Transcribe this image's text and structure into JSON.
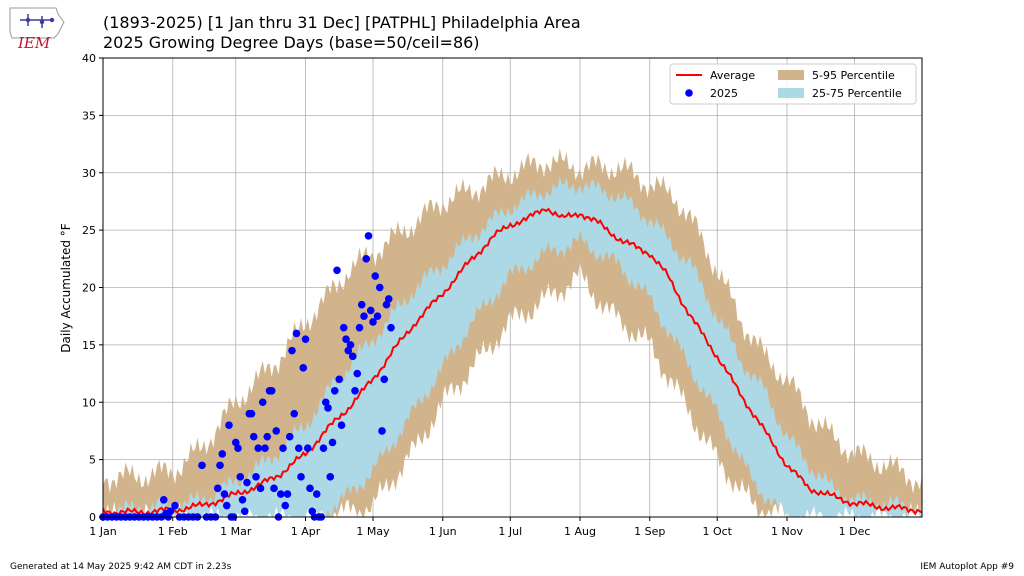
{
  "header": {
    "logo_text": "IEM",
    "title_line1": "(1893-2025) [1 Jan thru 31 Dec] [PATPHL] Philadelphia Area",
    "title_line2": "2025 Growing Degree Days (base=50/ceil=86)"
  },
  "footer": {
    "generated": "Generated at 14 May 2025 9:42 AM CDT in 2.23s",
    "app": "IEM Autoplot App #9"
  },
  "colors": {
    "average": "#ff0000",
    "obs": "#0000ff",
    "band_5_95": "#d2b48c",
    "band_25_75": "#add8e6",
    "grid": "#b0b0b0"
  },
  "chart_data": {
    "type": "line",
    "title": "2025 Growing Degree Days (base=50/ceil=86)",
    "xlabel": "",
    "ylabel": "Daily Accumulated °F",
    "xlim": [
      1,
      365
    ],
    "ylim": [
      0,
      40
    ],
    "grid": true,
    "legend_position": "top-right",
    "x_ticks": [
      {
        "label": "1 Jan",
        "doy": 1
      },
      {
        "label": "1 Feb",
        "doy": 32
      },
      {
        "label": "1 Mar",
        "doy": 60
      },
      {
        "label": "1 Apr",
        "doy": 91
      },
      {
        "label": "1 May",
        "doy": 121
      },
      {
        "label": "1 Jun",
        "doy": 152
      },
      {
        "label": "1 Jul",
        "doy": 182
      },
      {
        "label": "1 Aug",
        "doy": 213
      },
      {
        "label": "1 Sep",
        "doy": 244
      },
      {
        "label": "1 Oct",
        "doy": 274
      },
      {
        "label": "1 Nov",
        "doy": 305
      },
      {
        "label": "1 Dec",
        "doy": 335
      }
    ],
    "y_ticks": [
      0,
      5,
      10,
      15,
      20,
      25,
      30,
      35,
      40
    ],
    "legend": [
      {
        "label": "Average",
        "kind": "line",
        "color": "#ff0000"
      },
      {
        "label": "2025",
        "kind": "marker",
        "color": "#0000ff"
      },
      {
        "label": "5-95 Percentile",
        "kind": "patch",
        "color": "#d2b48c"
      },
      {
        "label": "25-75 Percentile",
        "kind": "patch",
        "color": "#add8e6"
      }
    ],
    "series": [
      {
        "name": "Average",
        "points": [
          [
            1,
            0.5
          ],
          [
            15,
            0.4
          ],
          [
            32,
            0.6
          ],
          [
            45,
            1.0
          ],
          [
            55,
            1.6
          ],
          [
            60,
            2.0
          ],
          [
            70,
            2.7
          ],
          [
            80,
            3.8
          ],
          [
            91,
            5.5
          ],
          [
            100,
            7.5
          ],
          [
            110,
            9.5
          ],
          [
            121,
            12.0
          ],
          [
            130,
            14.5
          ],
          [
            140,
            17.0
          ],
          [
            152,
            19.5
          ],
          [
            165,
            22.5
          ],
          [
            175,
            24.5
          ],
          [
            182,
            25.5
          ],
          [
            190,
            26.0
          ],
          [
            198,
            27.0
          ],
          [
            205,
            26.0
          ],
          [
            213,
            26.5
          ],
          [
            222,
            25.5
          ],
          [
            232,
            24.0
          ],
          [
            244,
            23.0
          ],
          [
            252,
            21.0
          ],
          [
            262,
            17.5
          ],
          [
            274,
            14.0
          ],
          [
            285,
            10.5
          ],
          [
            295,
            7.5
          ],
          [
            305,
            4.5
          ],
          [
            315,
            2.5
          ],
          [
            325,
            1.8
          ],
          [
            335,
            1.2
          ],
          [
            350,
            0.8
          ],
          [
            365,
            0.6
          ]
        ]
      },
      {
        "name": "5-95 Percentile",
        "low": [
          [
            1,
            0
          ],
          [
            45,
            0
          ],
          [
            60,
            0
          ],
          [
            80,
            0
          ],
          [
            91,
            0
          ],
          [
            100,
            0
          ],
          [
            121,
            1
          ],
          [
            140,
            6
          ],
          [
            152,
            10
          ],
          [
            165,
            13
          ],
          [
            182,
            17
          ],
          [
            198,
            19
          ],
          [
            213,
            21
          ],
          [
            225,
            18
          ],
          [
            244,
            15
          ],
          [
            262,
            9
          ],
          [
            274,
            5
          ],
          [
            290,
            1
          ],
          [
            305,
            0
          ],
          [
            335,
            0
          ],
          [
            365,
            0
          ]
        ],
        "high": [
          [
            1,
            3.5
          ],
          [
            15,
            3.5
          ],
          [
            32,
            4.0
          ],
          [
            45,
            6.0
          ],
          [
            60,
            10.0
          ],
          [
            70,
            12.0
          ],
          [
            80,
            14.0
          ],
          [
            91,
            17.0
          ],
          [
            100,
            19.0
          ],
          [
            110,
            21.5
          ],
          [
            121,
            23.0
          ],
          [
            135,
            25.0
          ],
          [
            152,
            27.5
          ],
          [
            165,
            28.5
          ],
          [
            182,
            30.0
          ],
          [
            198,
            31.0
          ],
          [
            213,
            30.5
          ],
          [
            230,
            30.5
          ],
          [
            244,
            29.0
          ],
          [
            255,
            28.0
          ],
          [
            265,
            25.0
          ],
          [
            274,
            21.5
          ],
          [
            285,
            17.0
          ],
          [
            295,
            14.0
          ],
          [
            305,
            12.0
          ],
          [
            315,
            9.0
          ],
          [
            325,
            7.0
          ],
          [
            335,
            5.5
          ],
          [
            350,
            4.5
          ],
          [
            365,
            3.0
          ]
        ]
      },
      {
        "name": "25-75 Percentile",
        "low": [
          [
            1,
            0
          ],
          [
            60,
            0
          ],
          [
            80,
            0
          ],
          [
            95,
            0
          ],
          [
            105,
            1
          ],
          [
            121,
            4
          ],
          [
            135,
            8
          ],
          [
            152,
            13
          ],
          [
            165,
            17
          ],
          [
            182,
            21
          ],
          [
            198,
            23
          ],
          [
            213,
            24
          ],
          [
            230,
            22
          ],
          [
            244,
            19
          ],
          [
            262,
            13
          ],
          [
            274,
            9
          ],
          [
            290,
            3
          ],
          [
            305,
            0
          ],
          [
            365,
            0
          ]
        ],
        "high": [
          [
            1,
            0.5
          ],
          [
            32,
            1.0
          ],
          [
            45,
            1.5
          ],
          [
            60,
            3.0
          ],
          [
            75,
            5.0
          ],
          [
            91,
            8.0
          ],
          [
            105,
            12.0
          ],
          [
            121,
            15.5
          ],
          [
            140,
            20.0
          ],
          [
            152,
            22.0
          ],
          [
            165,
            24.5
          ],
          [
            182,
            27.0
          ],
          [
            198,
            28.5
          ],
          [
            213,
            29.0
          ],
          [
            230,
            28.0
          ],
          [
            244,
            26.0
          ],
          [
            262,
            22.0
          ],
          [
            274,
            17.5
          ],
          [
            285,
            13.5
          ],
          [
            295,
            11.0
          ],
          [
            305,
            7.0
          ],
          [
            315,
            4.5
          ],
          [
            325,
            2.5
          ],
          [
            335,
            1.5
          ],
          [
            365,
            0.8
          ]
        ]
      },
      {
        "name": "2025",
        "points": [
          [
            1,
            0
          ],
          [
            3,
            0
          ],
          [
            5,
            0
          ],
          [
            7,
            0
          ],
          [
            9,
            0
          ],
          [
            11,
            0
          ],
          [
            13,
            0
          ],
          [
            15,
            0
          ],
          [
            17,
            0
          ],
          [
            19,
            0
          ],
          [
            21,
            0
          ],
          [
            23,
            0
          ],
          [
            25,
            0
          ],
          [
            27,
            0
          ],
          [
            28,
            1.5
          ],
          [
            29,
            0.3
          ],
          [
            30,
            0
          ],
          [
            31,
            0.5
          ],
          [
            33,
            1.0
          ],
          [
            35,
            0
          ],
          [
            37,
            0
          ],
          [
            39,
            0
          ],
          [
            41,
            0
          ],
          [
            43,
            0
          ],
          [
            45,
            4.5
          ],
          [
            47,
            0
          ],
          [
            49,
            0
          ],
          [
            51,
            0
          ],
          [
            52,
            2.5
          ],
          [
            53,
            4.5
          ],
          [
            54,
            5.5
          ],
          [
            55,
            2.0
          ],
          [
            56,
            1.0
          ],
          [
            57,
            8.0
          ],
          [
            58,
            0
          ],
          [
            59,
            0
          ],
          [
            60,
            6.5
          ],
          [
            61,
            6.0
          ],
          [
            62,
            3.5
          ],
          [
            63,
            1.5
          ],
          [
            64,
            0.5
          ],
          [
            65,
            3.0
          ],
          [
            66,
            9.0
          ],
          [
            67,
            9.0
          ],
          [
            68,
            7.0
          ],
          [
            69,
            3.5
          ],
          [
            70,
            6.0
          ],
          [
            71,
            2.5
          ],
          [
            72,
            10.0
          ],
          [
            73,
            6.0
          ],
          [
            74,
            7.0
          ],
          [
            75,
            11.0
          ],
          [
            76,
            11.0
          ],
          [
            77,
            2.5
          ],
          [
            78,
            7.5
          ],
          [
            79,
            0
          ],
          [
            80,
            2.0
          ],
          [
            81,
            6.0
          ],
          [
            82,
            1.0
          ],
          [
            83,
            2.0
          ],
          [
            84,
            7.0
          ],
          [
            85,
            14.5
          ],
          [
            86,
            9.0
          ],
          [
            87,
            16.0
          ],
          [
            88,
            6.0
          ],
          [
            89,
            3.5
          ],
          [
            90,
            13.0
          ],
          [
            91,
            15.5
          ],
          [
            92,
            6.0
          ],
          [
            93,
            2.5
          ],
          [
            94,
            0.5
          ],
          [
            95,
            0
          ],
          [
            96,
            2.0
          ],
          [
            97,
            0
          ],
          [
            98,
            0
          ],
          [
            99,
            6.0
          ],
          [
            100,
            10.0
          ],
          [
            101,
            9.5
          ],
          [
            102,
            3.5
          ],
          [
            103,
            6.5
          ],
          [
            104,
            11.0
          ],
          [
            105,
            21.5
          ],
          [
            106,
            12.0
          ],
          [
            107,
            8.0
          ],
          [
            108,
            16.5
          ],
          [
            109,
            15.5
          ],
          [
            110,
            14.5
          ],
          [
            111,
            15.0
          ],
          [
            112,
            14.0
          ],
          [
            113,
            11.0
          ],
          [
            114,
            12.5
          ],
          [
            115,
            16.5
          ],
          [
            116,
            18.5
          ],
          [
            117,
            17.5
          ],
          [
            118,
            22.5
          ],
          [
            119,
            24.5
          ],
          [
            120,
            18.0
          ],
          [
            121,
            17.0
          ],
          [
            122,
            21.0
          ],
          [
            123,
            17.5
          ],
          [
            124,
            20.0
          ],
          [
            125,
            7.5
          ],
          [
            126,
            12.0
          ],
          [
            127,
            18.5
          ],
          [
            128,
            19.0
          ],
          [
            129,
            16.5
          ]
        ]
      }
    ]
  }
}
